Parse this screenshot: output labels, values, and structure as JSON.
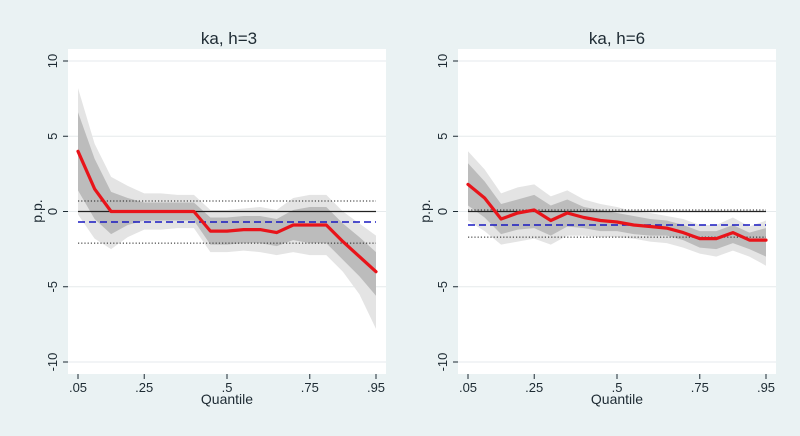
{
  "chart_data": [
    {
      "type": "line",
      "title": "ka, h=3",
      "xlabel": "Quantile",
      "ylabel": "p.p.",
      "xlim": [
        0.05,
        0.95
      ],
      "ylim": [
        -10,
        10
      ],
      "xticks": [
        0.05,
        0.25,
        0.5,
        0.75,
        0.95
      ],
      "xtick_labels": [
        ".05",
        ".25",
        ".5",
        ".75",
        ".95"
      ],
      "yticks": [
        10,
        5,
        0,
        -5,
        -10
      ],
      "ytick_labels": [
        "10",
        "5",
        "0",
        "-5",
        "-10"
      ],
      "x": [
        0.05,
        0.1,
        0.15,
        0.2,
        0.25,
        0.3,
        0.35,
        0.4,
        0.45,
        0.5,
        0.55,
        0.6,
        0.65,
        0.7,
        0.75,
        0.8,
        0.85,
        0.9,
        0.95
      ],
      "series": [
        {
          "name": "estimate",
          "color": "#e8141a",
          "values": [
            4.0,
            1.5,
            0.0,
            0.0,
            0.0,
            0.0,
            0.0,
            0.0,
            -1.3,
            -1.3,
            -1.2,
            -1.2,
            -1.4,
            -0.9,
            -0.9,
            -0.9,
            -2.0,
            -3.0,
            -4.0
          ]
        },
        {
          "name": "ci_outer_upper",
          "values": [
            8.2,
            4.5,
            2.3,
            1.7,
            1.2,
            1.2,
            1.1,
            1.1,
            0.1,
            0.1,
            0.2,
            0.3,
            0.1,
            0.9,
            1.1,
            1.1,
            0.0,
            -0.8,
            -1.6
          ]
        },
        {
          "name": "ci_outer_lower",
          "values": [
            -0.2,
            -1.8,
            -2.5,
            -1.7,
            -1.2,
            -1.2,
            -1.1,
            -1.1,
            -2.7,
            -2.7,
            -2.6,
            -2.7,
            -2.9,
            -2.7,
            -2.9,
            -2.9,
            -4.0,
            -5.5,
            -7.8
          ]
        },
        {
          "name": "ci_inner_upper",
          "values": [
            6.6,
            3.5,
            1.3,
            0.9,
            0.6,
            0.6,
            0.6,
            0.6,
            -0.4,
            -0.4,
            -0.3,
            -0.3,
            -0.5,
            0.1,
            0.3,
            0.3,
            -0.8,
            -1.7,
            -2.7
          ]
        },
        {
          "name": "ci_inner_lower",
          "values": [
            1.4,
            -0.5,
            -1.5,
            -0.9,
            -0.6,
            -0.6,
            -0.6,
            -0.6,
            -2.2,
            -2.2,
            -2.1,
            -2.1,
            -2.3,
            -1.9,
            -2.1,
            -2.1,
            -3.2,
            -4.3,
            -5.6
          ]
        }
      ],
      "reference_lines": {
        "zero": 0,
        "mean": -0.7,
        "upper_band": 0.7,
        "lower_band": -2.1
      }
    },
    {
      "type": "line",
      "title": "ka, h=6",
      "xlabel": "Quantile",
      "ylabel": "p.p.",
      "xlim": [
        0.05,
        0.95
      ],
      "ylim": [
        -10,
        10
      ],
      "xticks": [
        0.05,
        0.25,
        0.5,
        0.75,
        0.95
      ],
      "xtick_labels": [
        ".05",
        ".25",
        ".5",
        ".75",
        ".95"
      ],
      "yticks": [
        10,
        5,
        0,
        -5,
        -10
      ],
      "ytick_labels": [
        "10",
        "5",
        "0",
        "-5",
        "-10"
      ],
      "x": [
        0.05,
        0.1,
        0.15,
        0.2,
        0.25,
        0.3,
        0.35,
        0.4,
        0.45,
        0.5,
        0.55,
        0.6,
        0.65,
        0.7,
        0.75,
        0.8,
        0.85,
        0.9,
        0.95
      ],
      "series": [
        {
          "name": "estimate",
          "color": "#e8141a",
          "values": [
            1.8,
            0.9,
            -0.5,
            -0.1,
            0.1,
            -0.6,
            -0.1,
            -0.4,
            -0.6,
            -0.7,
            -0.9,
            -1.0,
            -1.1,
            -1.4,
            -1.8,
            -1.8,
            -1.4,
            -1.9,
            -1.9
          ]
        },
        {
          "name": "ci_outer_upper",
          "values": [
            4.0,
            2.8,
            1.2,
            1.6,
            1.8,
            1.0,
            1.4,
            0.8,
            0.5,
            0.3,
            0.0,
            -0.1,
            -0.3,
            -0.5,
            -0.9,
            -0.9,
            -0.4,
            -1.0,
            -0.6
          ]
        },
        {
          "name": "ci_outer_lower",
          "values": [
            -0.6,
            -1.3,
            -2.2,
            -2.0,
            -1.8,
            -2.2,
            -1.6,
            -1.6,
            -1.7,
            -1.7,
            -1.8,
            -2.0,
            -2.1,
            -2.4,
            -2.8,
            -3.0,
            -2.6,
            -3.0,
            -3.6
          ]
        },
        {
          "name": "ci_inner_upper",
          "values": [
            3.2,
            2.0,
            0.5,
            0.8,
            1.1,
            0.4,
            0.8,
            0.3,
            0.1,
            -0.1,
            -0.3,
            -0.5,
            -0.6,
            -0.9,
            -1.3,
            -1.3,
            -0.9,
            -1.4,
            -1.1
          ]
        },
        {
          "name": "ci_inner_lower",
          "values": [
            0.4,
            -0.4,
            -1.5,
            -1.2,
            -1.1,
            -1.6,
            -1.0,
            -1.1,
            -1.3,
            -1.3,
            -1.5,
            -1.6,
            -1.6,
            -1.9,
            -2.4,
            -2.5,
            -2.1,
            -2.5,
            -3.0
          ]
        }
      ],
      "reference_lines": {
        "zero": 0,
        "mean": -0.9,
        "upper_band": 0.1,
        "lower_band": -1.7
      }
    }
  ],
  "colors": {
    "background": "#eaf2f3",
    "plot_background": "#ffffff",
    "estimate": "#e8141a",
    "outer_band": "#e4e4e4",
    "inner_band": "#bcbcbc",
    "mean_line": "#1818c0",
    "reference": "#222222",
    "gridline": "#e6eaec"
  }
}
